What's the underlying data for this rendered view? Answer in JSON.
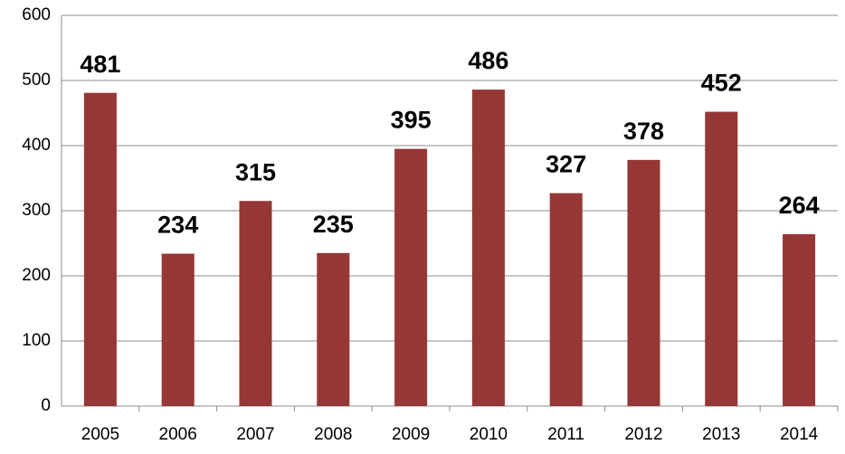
{
  "chart_data": {
    "type": "bar",
    "categories": [
      "2005",
      "2006",
      "2007",
      "2008",
      "2009",
      "2010",
      "2011",
      "2012",
      "2013",
      "2014"
    ],
    "values": [
      481,
      234,
      315,
      235,
      395,
      486,
      327,
      378,
      452,
      264
    ],
    "color": "#953735",
    "ylim": [
      0,
      600
    ],
    "yticks": [
      0,
      100,
      200,
      300,
      400,
      500,
      600
    ],
    "grid": true
  }
}
